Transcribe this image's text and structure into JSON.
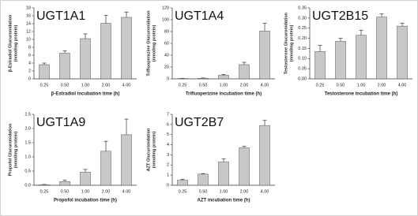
{
  "chart_data": [
    {
      "type": "bar",
      "title": "UGT1A1",
      "ylabel": [
        "β-Estradiol Glucuronidation",
        "(nmol/mg protein)"
      ],
      "xlabel": "β-Estradiol incubation time (h)",
      "categories": [
        "0.25",
        "0.50",
        "1.00",
        "2.00",
        "4.00"
      ],
      "values": [
        3.6,
        6.5,
        10.2,
        14.1,
        15.6
      ],
      "errors": [
        0.4,
        0.6,
        1.2,
        2.0,
        1.3
      ],
      "color": "#c8c8c8",
      "ylim": [
        0,
        18
      ],
      "yticks": [
        0,
        2,
        4,
        6,
        8,
        10,
        12,
        14,
        16,
        18
      ]
    },
    {
      "type": "bar",
      "title": "UGT1A4",
      "ylabel": [
        "Trifluoperazine Glucuronidation",
        "(nmol/mg protein)"
      ],
      "xlabel": "Trifluoperizine incubation time (h)",
      "categories": [
        "0.25",
        "0.50",
        "1.00",
        "2.00",
        "4.00"
      ],
      "values": [
        0.5,
        1,
        6,
        24,
        81
      ],
      "errors": [
        0.3,
        0.5,
        1.5,
        4,
        13
      ],
      "color": "#c8c8c8",
      "ylim": [
        0,
        120
      ],
      "yticks": [
        0,
        20,
        40,
        60,
        80,
        100,
        120
      ]
    },
    {
      "type": "bar",
      "title": "UGT2B15",
      "ylabel": [
        "Testosterone Glucuronidation",
        "(nmol/mg protein)"
      ],
      "xlabel": "Testosterone incubation time (h)",
      "categories": [
        "0.25",
        "0.50",
        "1.00",
        "2.00",
        "4.00"
      ],
      "values": [
        0.135,
        0.185,
        0.215,
        0.305,
        0.26
      ],
      "errors": [
        0.03,
        0.015,
        0.025,
        0.015,
        0.015
      ],
      "color": "#c8c8c8",
      "ylim": [
        0,
        0.35
      ],
      "yticks": [
        {
          "value": 0,
          "label": "0.00"
        },
        0.05,
        {
          "value": 0.1,
          "label": "0.10"
        },
        0.15,
        {
          "value": 0.2,
          "label": "0.20"
        },
        0.25,
        {
          "value": 0.3,
          "label": "0.30"
        },
        0.35
      ]
    },
    {
      "type": "bar",
      "title": "UGT1A9",
      "ylabel": [
        "Propofol Glucuronidation",
        "(nmol/mg protein)"
      ],
      "xlabel": "Propofol incubation time (h)",
      "categories": [
        "0.25",
        "0.50",
        "1.00",
        "2.00",
        "4.00"
      ],
      "values": [
        0.02,
        0.13,
        0.46,
        1.2,
        1.78
      ],
      "errors": [
        0.01,
        0.05,
        0.1,
        0.35,
        0.55
      ],
      "color": "#c8c8c8",
      "ylim": [
        0,
        2.5
      ],
      "yticks": [
        {
          "value": 0,
          "label": "0.0"
        },
        0.5,
        {
          "value": 1,
          "label": "1.0"
        },
        1.5,
        {
          "value": 2,
          "label": "2.0"
        },
        2.5
      ]
    },
    {
      "type": "bar",
      "title": "UGT2B7",
      "ylabel": [
        "AZT Glucuronidation",
        "(nmol/mg protein)"
      ],
      "xlabel": "AZT incubation time (h)",
      "categories": [
        "0.25",
        "0.50",
        "1.00",
        "2.00",
        "4.00"
      ],
      "values": [
        0.5,
        1.1,
        2.3,
        3.7,
        5.9
      ],
      "errors": [
        0.1,
        0.05,
        0.3,
        0.15,
        0.5
      ],
      "color": "#c8c8c8",
      "ylim": [
        0,
        7
      ],
      "yticks": [
        0,
        1,
        2,
        3,
        4,
        5,
        6,
        7
      ]
    }
  ]
}
